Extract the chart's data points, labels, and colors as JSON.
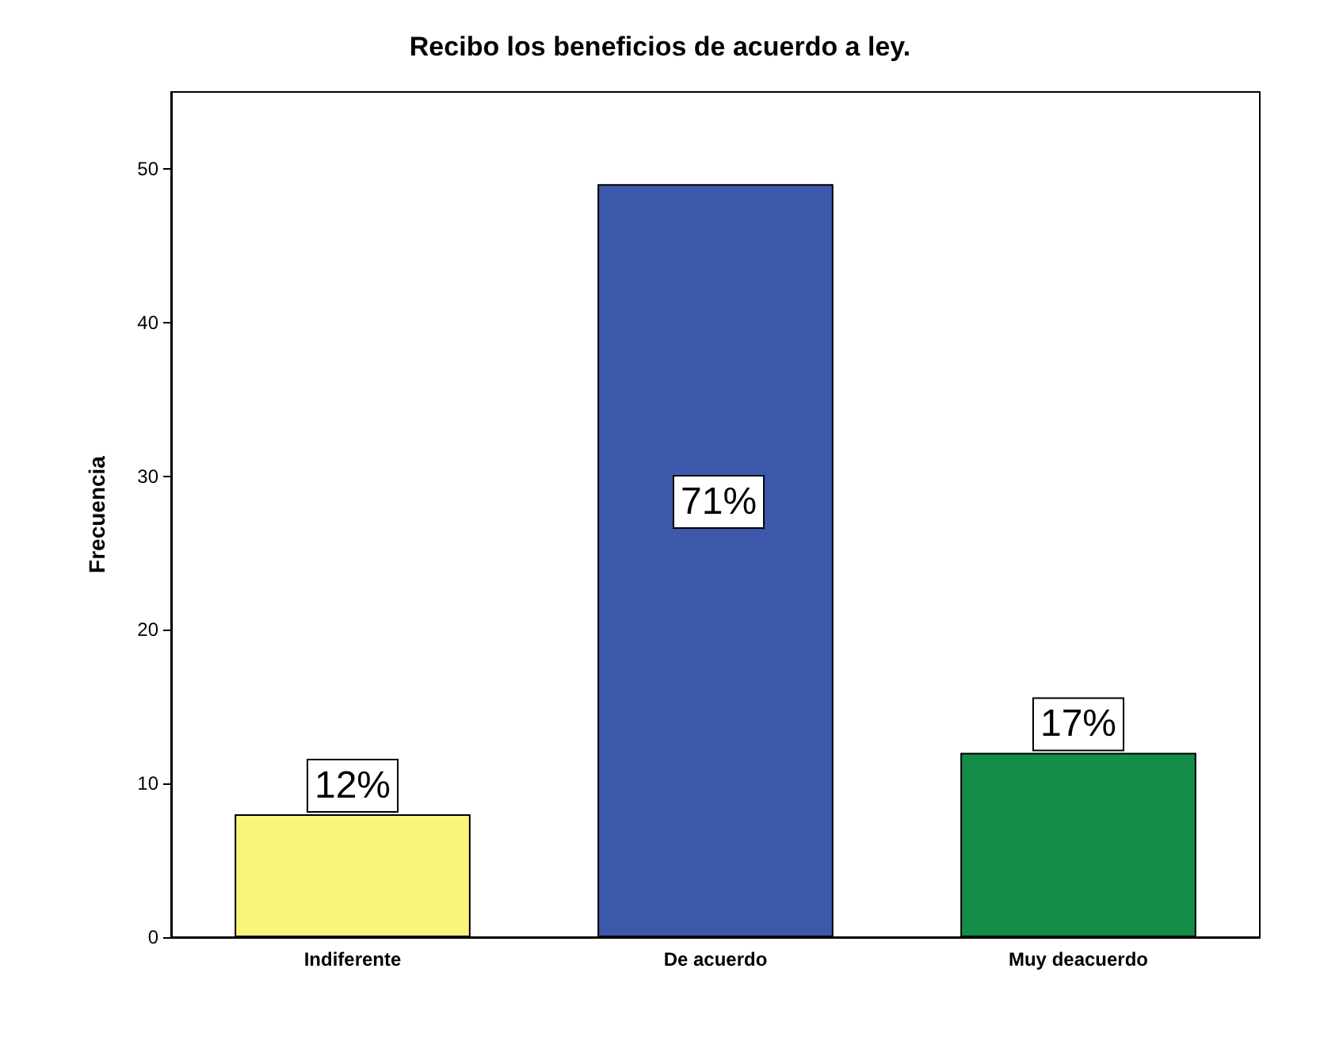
{
  "chart_data": {
    "type": "bar",
    "title": "Recibo los beneficios de acuerdo a ley.",
    "ylabel": "Frecuencia",
    "categories": [
      "Indiferente",
      "De acuerdo",
      "Muy deacuerdo"
    ],
    "values": [
      8,
      49,
      12
    ],
    "colors": [
      "#f9f57a",
      "#3d59ab",
      "#138d47"
    ],
    "annotations": [
      {
        "text": "12%",
        "x": "Indiferente",
        "y": 8
      },
      "71%",
      {
        "text": "17%",
        "x": "Muy deacuerdo",
        "y": 12
      }
    ],
    "ylim": [
      0,
      55
    ],
    "yticks": [
      0,
      10,
      20,
      30,
      40,
      50
    ],
    "grid": false
  }
}
